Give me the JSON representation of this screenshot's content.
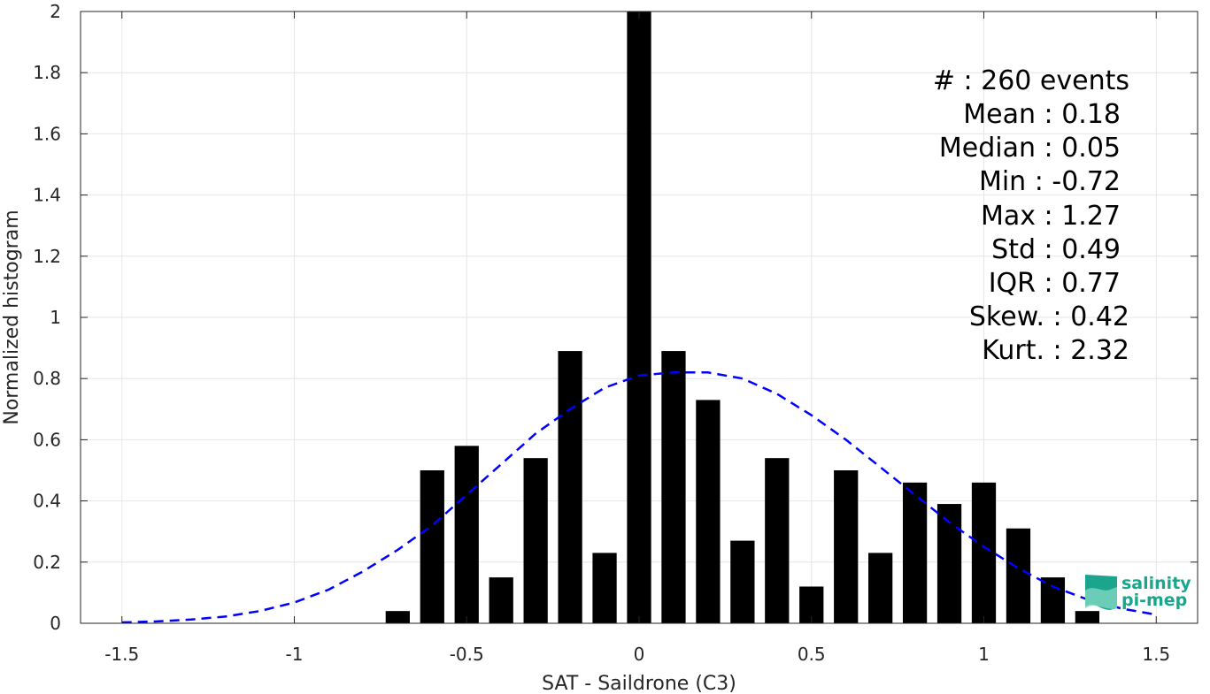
{
  "chart_data": {
    "type": "bar",
    "xlabel": "SAT - Saildrone (C3)",
    "ylabel": "Normalized histogram",
    "xlim": [
      -1.62,
      1.62
    ],
    "ylim": [
      0,
      2
    ],
    "grid": true,
    "x_ticks": [
      -1.5,
      -1,
      -0.5,
      0,
      0.5,
      1,
      1.5
    ],
    "x_tick_labels": [
      "-1.5",
      "-1",
      "-0.5",
      "0",
      "0.5",
      "1",
      "1.5"
    ],
    "y_ticks": [
      0,
      0.2,
      0.4,
      0.6,
      0.8,
      1,
      1.2,
      1.4,
      1.6,
      1.8,
      2
    ],
    "y_tick_labels": [
      "0",
      "0.2",
      "0.4",
      "0.6",
      "0.8",
      "1",
      "1.2",
      "1.4",
      "1.6",
      "1.8",
      "2"
    ],
    "bar_width": 0.07,
    "bar_color": "#000000",
    "x": [
      -0.7,
      -0.6,
      -0.5,
      -0.4,
      -0.3,
      -0.2,
      -0.1,
      0,
      0.1,
      0.2,
      0.3,
      0.4,
      0.5,
      0.6,
      0.7,
      0.8,
      0.9,
      1.0,
      1.1,
      1.2,
      1.3
    ],
    "values": [
      0.04,
      0.5,
      0.58,
      0.15,
      0.54,
      0.89,
      0.23,
      2.0,
      0.89,
      0.73,
      0.27,
      0.54,
      0.12,
      0.5,
      0.23,
      0.46,
      0.39,
      0.46,
      0.31,
      0.15,
      0.04
    ],
    "fit": {
      "style": "dashed",
      "color": "#0000ff",
      "x": [
        -1.5,
        -1.4,
        -1.3,
        -1.2,
        -1.1,
        -1.0,
        -0.9,
        -0.8,
        -0.7,
        -0.6,
        -0.5,
        -0.4,
        -0.3,
        -0.2,
        -0.1,
        0.0,
        0.1,
        0.2,
        0.3,
        0.4,
        0.5,
        0.6,
        0.7,
        0.8,
        0.9,
        1.0,
        1.1,
        1.2,
        1.3,
        1.4,
        1.5
      ],
      "y": [
        0.003,
        0.006,
        0.012,
        0.022,
        0.04,
        0.068,
        0.11,
        0.17,
        0.24,
        0.32,
        0.42,
        0.52,
        0.62,
        0.7,
        0.77,
        0.81,
        0.82,
        0.82,
        0.8,
        0.75,
        0.68,
        0.6,
        0.51,
        0.42,
        0.33,
        0.25,
        0.18,
        0.12,
        0.078,
        0.048,
        0.028
      ]
    },
    "annotations": [
      "#  : 260 events",
      "Mean : 0.18",
      "Median : 0.05",
      "Min : -0.72",
      "Max : 1.27",
      "Std : 0.49",
      "IQR : 0.77",
      "Skew. : 0.42",
      "Kurt. : 2.32"
    ]
  },
  "logo": {
    "line1": "salinity",
    "line2": "pi-mep",
    "color": "#1aa58c"
  }
}
